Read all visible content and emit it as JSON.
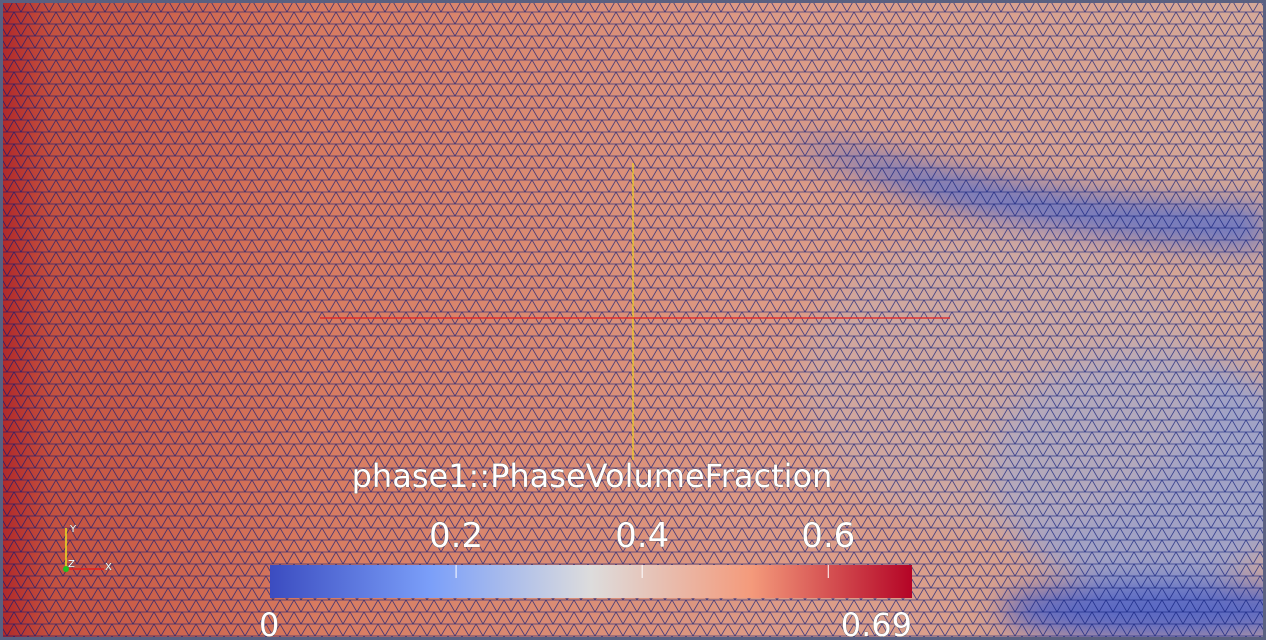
{
  "colorbar": {
    "title": "phase1::PhaseVolumeFraction",
    "range": [
      0,
      0.69
    ],
    "ticks": [
      0.2,
      0.4,
      0.6
    ]
  },
  "orientation_axes": {
    "y": "Y",
    "z": "Z",
    "x": "X"
  }
}
